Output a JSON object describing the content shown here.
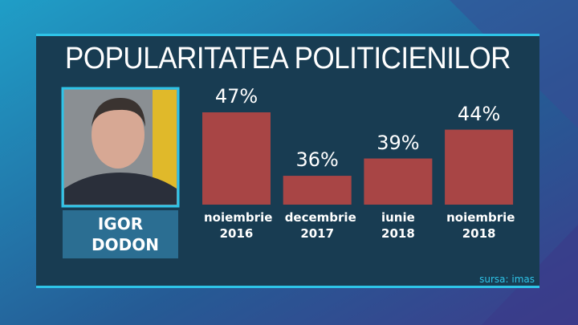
{
  "chart_data": {
    "type": "bar",
    "title": "POPULARITATEA POLITICIENILOR",
    "person": "IGOR DODON",
    "categories": [
      "noiembrie 2016",
      "decembrie 2017",
      "iunie 2018",
      "noiembrie 2018"
    ],
    "values": [
      47,
      36,
      39,
      44
    ],
    "value_labels": [
      "47%",
      "36%",
      "39%",
      "44%"
    ],
    "color": "#a84545",
    "ylim": [
      31,
      47
    ],
    "source": "sursa: imas"
  }
}
